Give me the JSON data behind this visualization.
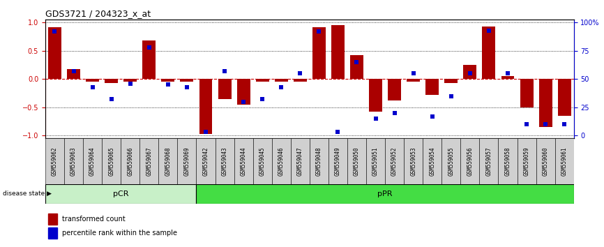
{
  "title": "GDS3721 / 204323_x_at",
  "samples": [
    "GSM559062",
    "GSM559063",
    "GSM559064",
    "GSM559065",
    "GSM559066",
    "GSM559067",
    "GSM559068",
    "GSM559069",
    "GSM559042",
    "GSM559043",
    "GSM559044",
    "GSM559045",
    "GSM559046",
    "GSM559047",
    "GSM559048",
    "GSM559049",
    "GSM559050",
    "GSM559051",
    "GSM559052",
    "GSM559053",
    "GSM559054",
    "GSM559055",
    "GSM559056",
    "GSM559057",
    "GSM559058",
    "GSM559059",
    "GSM559060",
    "GSM559061"
  ],
  "transformed_count": [
    0.92,
    0.18,
    -0.04,
    -0.07,
    -0.04,
    0.68,
    -0.04,
    -0.04,
    -0.97,
    -0.35,
    -0.45,
    -0.04,
    -0.04,
    -0.04,
    0.92,
    0.95,
    0.42,
    -0.58,
    -0.38,
    -0.04,
    -0.28,
    -0.07,
    0.25,
    0.93,
    0.05,
    -0.5,
    -0.85,
    -0.65
  ],
  "percentile_rank": [
    92,
    57,
    43,
    32,
    46,
    78,
    45,
    43,
    3,
    57,
    30,
    32,
    43,
    55,
    92,
    3,
    65,
    15,
    20,
    55,
    17,
    35,
    55,
    93,
    55,
    10,
    10,
    10
  ],
  "n_pcr": 8,
  "n_total": 28,
  "bar_color": "#AA0000",
  "dot_color": "#0000CC",
  "pcr_color": "#c8f0c8",
  "ppr_color": "#44dd44",
  "group_border_color": "#006600",
  "left_yticks": [
    -1,
    -0.5,
    0,
    0.5,
    1
  ],
  "right_yticks": [
    0,
    25,
    50,
    75,
    100
  ],
  "right_yticklabels": [
    "0",
    "25",
    "50",
    "75",
    "100%"
  ],
  "hline_color": "#CC0000",
  "title_fontsize": 9,
  "label_fontsize": 7,
  "tick_fontsize": 7
}
